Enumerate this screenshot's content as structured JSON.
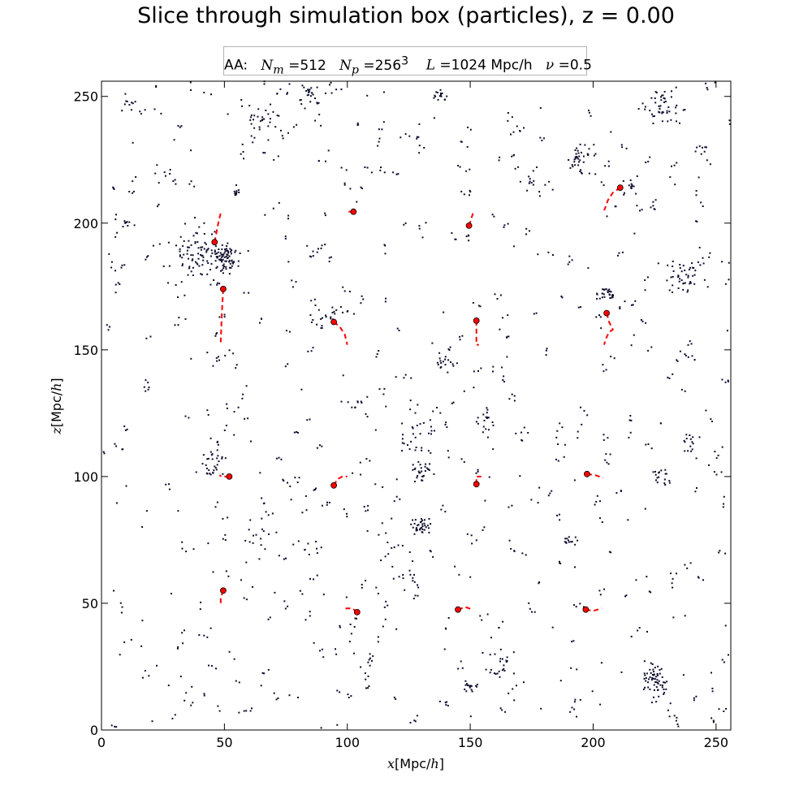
{
  "chart_data": {
    "type": "scatter",
    "title": "Slice through simulation box (particles), z = 0.00",
    "legend": {
      "prefix": "AA:",
      "items": [
        "N_m = 512",
        "N_p = 256^3",
        "L = 1024 Mpc/h",
        "ν = 0.5"
      ]
    },
    "xlabel": "x[Mpc/h]",
    "ylabel": "z[Mpc/h]",
    "xlim": [
      0,
      256
    ],
    "ylim": [
      0,
      256
    ],
    "xticks": [
      0,
      50,
      100,
      150,
      200,
      250
    ],
    "yticks": [
      0,
      50,
      100,
      150,
      200,
      250
    ],
    "colors": {
      "particles": "#0d0d2e",
      "tracks": "#ff0000",
      "markers": "#ff0000"
    },
    "clusters": [
      {
        "x": 50,
        "y": 186,
        "n": 80,
        "s": 4
      },
      {
        "x": 38,
        "y": 188,
        "n": 70,
        "s": 7
      },
      {
        "x": 230,
        "y": 245,
        "n": 45,
        "s": 5
      },
      {
        "x": 225,
        "y": 20,
        "n": 55,
        "s": 4
      },
      {
        "x": 195,
        "y": 225,
        "n": 35,
        "s": 4
      },
      {
        "x": 235,
        "y": 178,
        "n": 40,
        "s": 5
      },
      {
        "x": 130,
        "y": 80,
        "n": 35,
        "s": 3
      },
      {
        "x": 130,
        "y": 102,
        "n": 25,
        "s": 3
      },
      {
        "x": 45,
        "y": 105,
        "n": 30,
        "s": 4
      },
      {
        "x": 65,
        "y": 240,
        "n": 30,
        "s": 5
      },
      {
        "x": 85,
        "y": 250,
        "n": 25,
        "s": 4
      },
      {
        "x": 138,
        "y": 251,
        "n": 15,
        "s": 2
      },
      {
        "x": 205,
        "y": 172,
        "n": 25,
        "s": 2
      },
      {
        "x": 140,
        "y": 145,
        "n": 18,
        "s": 3
      },
      {
        "x": 92,
        "y": 163,
        "n": 20,
        "s": 5
      },
      {
        "x": 228,
        "y": 100,
        "n": 18,
        "s": 3
      },
      {
        "x": 128,
        "y": 115,
        "n": 20,
        "s": 6
      },
      {
        "x": 162,
        "y": 25,
        "n": 25,
        "s": 5
      },
      {
        "x": 150,
        "y": 17,
        "n": 15,
        "s": 2
      },
      {
        "x": 240,
        "y": 113,
        "n": 14,
        "s": 3
      },
      {
        "x": 55,
        "y": 212,
        "n": 10,
        "s": 1
      },
      {
        "x": 190,
        "y": 75,
        "n": 10,
        "s": 2
      },
      {
        "x": 215,
        "y": 215,
        "n": 15,
        "s": 3
      },
      {
        "x": 245,
        "y": 228,
        "n": 10,
        "s": 4
      },
      {
        "x": 12,
        "y": 248,
        "n": 10,
        "s": 3
      },
      {
        "x": 10,
        "y": 200,
        "n": 8,
        "s": 1
      },
      {
        "x": 27,
        "y": 220,
        "n": 8,
        "s": 3
      },
      {
        "x": 155,
        "y": 120,
        "n": 15,
        "s": 5
      },
      {
        "x": 125,
        "y": 60,
        "n": 15,
        "s": 5
      },
      {
        "x": 65,
        "y": 75,
        "n": 15,
        "s": 5
      },
      {
        "x": 240,
        "y": 150,
        "n": 10,
        "s": 5
      },
      {
        "x": 175,
        "y": 215,
        "n": 15,
        "s": 6
      },
      {
        "x": 110,
        "y": 28,
        "n": 8,
        "s": 3
      }
    ],
    "field_count": 520,
    "marked_points": [
      {
        "x": 46,
        "y": 192.5
      },
      {
        "x": 49.5,
        "y": 174
      },
      {
        "x": 102.5,
        "y": 204.5
      },
      {
        "x": 149.5,
        "y": 199
      },
      {
        "x": 211,
        "y": 214
      },
      {
        "x": 94.5,
        "y": 161
      },
      {
        "x": 152.5,
        "y": 161.5
      },
      {
        "x": 205.5,
        "y": 164.5
      },
      {
        "x": 52,
        "y": 100
      },
      {
        "x": 94.5,
        "y": 96.5
      },
      {
        "x": 152.5,
        "y": 97
      },
      {
        "x": 197.5,
        "y": 101
      },
      {
        "x": 49.5,
        "y": 55
      },
      {
        "x": 104,
        "y": 46.5
      },
      {
        "x": 145,
        "y": 47.5
      },
      {
        "x": 197,
        "y": 47.5
      }
    ],
    "tracks": [
      [
        [
          46,
          192.5
        ],
        [
          47.5,
          200
        ],
        [
          48.5,
          204
        ]
      ],
      [
        [
          49.5,
          174
        ],
        [
          49,
          165
        ],
        [
          48.5,
          153
        ]
      ],
      [
        [
          102.5,
          204.5
        ],
        [
          99.5,
          204.5
        ]
      ],
      [
        [
          149.5,
          199
        ],
        [
          150.5,
          202
        ],
        [
          151.5,
          205
        ]
      ],
      [
        [
          211,
          214
        ],
        [
          208,
          212
        ],
        [
          206,
          209
        ],
        [
          204.5,
          205
        ]
      ],
      [
        [
          94.5,
          161
        ],
        [
          97,
          159
        ],
        [
          99,
          156
        ],
        [
          100,
          152
        ]
      ],
      [
        [
          152.5,
          161.5
        ],
        [
          152.5,
          156
        ],
        [
          152.5,
          152
        ],
        [
          153.5,
          152
        ]
      ],
      [
        [
          205.5,
          164.5
        ],
        [
          206.5,
          161
        ],
        [
          208,
          158
        ],
        [
          206.5,
          157
        ],
        [
          205,
          154
        ],
        [
          204.5,
          152
        ]
      ],
      [
        [
          52,
          100
        ],
        [
          49,
          100
        ],
        [
          48,
          100.5
        ]
      ],
      [
        [
          94.5,
          96.5
        ],
        [
          96,
          99
        ],
        [
          98,
          100
        ],
        [
          100,
          100
        ]
      ],
      [
        [
          152.5,
          97
        ],
        [
          152.5,
          100
        ],
        [
          154.5,
          100
        ]
      ],
      [
        [
          197.5,
          101
        ],
        [
          201,
          100.5
        ],
        [
          204,
          99.5
        ]
      ],
      [
        [
          49.5,
          55
        ],
        [
          48.5,
          52
        ],
        [
          48.5,
          49
        ]
      ],
      [
        [
          104,
          46.5
        ],
        [
          102,
          48
        ],
        [
          99,
          48
        ]
      ],
      [
        [
          145,
          47.5
        ],
        [
          148,
          48.5
        ],
        [
          151,
          47.5
        ]
      ],
      [
        [
          197,
          47.5
        ],
        [
          200,
          47
        ],
        [
          203.5,
          48
        ]
      ]
    ]
  }
}
